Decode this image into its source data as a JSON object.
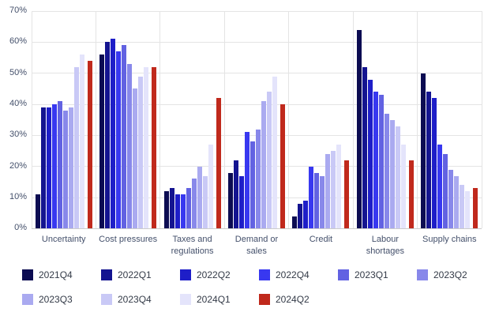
{
  "chart_data": {
    "type": "bar",
    "title": "",
    "xlabel": "",
    "ylabel": "",
    "ylim": [
      0,
      70
    ],
    "ytick_step": 10,
    "ytick_suffix": "%",
    "grid": true,
    "legend_position": "bottom",
    "categories": [
      "Uncertainty",
      "Cost pressures",
      "Taxes and regulations",
      "Demand or sales",
      "Credit",
      "Labour shortages",
      "Supply chains"
    ],
    "series": [
      {
        "name": "2021Q4",
        "color": "#0c0c52",
        "values": [
          11,
          56,
          12,
          18,
          4,
          64,
          50
        ]
      },
      {
        "name": "2022Q1",
        "color": "#141490",
        "values": [
          39,
          60,
          13,
          22,
          8,
          52,
          44
        ]
      },
      {
        "name": "2022Q2",
        "color": "#1e1ec8",
        "values": [
          39,
          61,
          11,
          17,
          9,
          48,
          42
        ]
      },
      {
        "name": "2022Q4",
        "color": "#3838f0",
        "values": [
          40,
          57,
          11,
          31,
          20,
          44,
          27
        ]
      },
      {
        "name": "2023Q1",
        "color": "#6262e2",
        "values": [
          41,
          59,
          13,
          28,
          18,
          43,
          24
        ]
      },
      {
        "name": "2023Q2",
        "color": "#8888ea",
        "values": [
          38,
          53,
          16,
          32,
          17,
          37,
          19
        ]
      },
      {
        "name": "2023Q3",
        "color": "#aaaaf0",
        "values": [
          39,
          45,
          20,
          41,
          24,
          35,
          17
        ]
      },
      {
        "name": "2023Q4",
        "color": "#c9c9f6",
        "values": [
          52,
          49,
          17,
          44,
          25,
          33,
          14
        ]
      },
      {
        "name": "2024Q1",
        "color": "#e4e4fb",
        "values": [
          56,
          52,
          27,
          49,
          27,
          27,
          12
        ]
      },
      {
        "name": "2024Q2",
        "color": "#c0291c",
        "values": [
          54,
          52,
          42,
          40,
          22,
          22,
          13
        ]
      }
    ]
  }
}
